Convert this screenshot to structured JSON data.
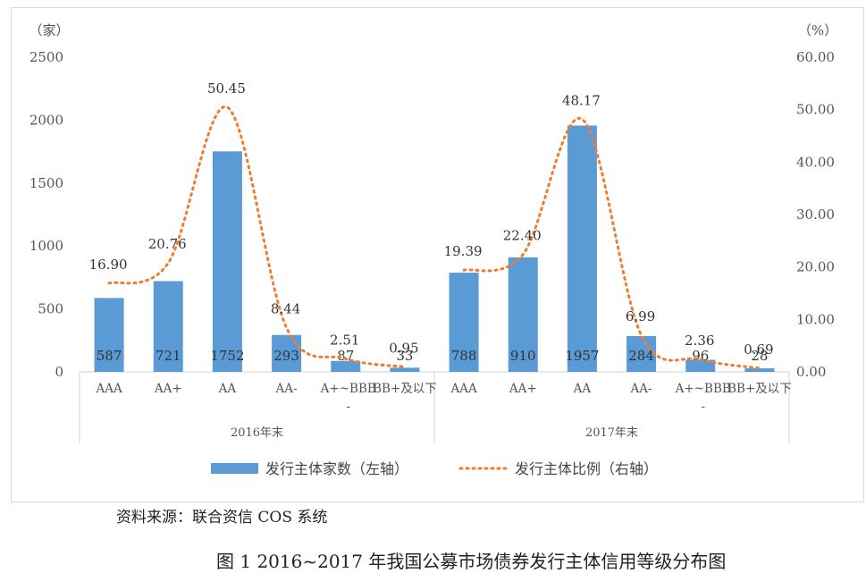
{
  "chart_data": {
    "type": "bar",
    "left_unit": "（家）",
    "right_unit": "（%）",
    "y_left": {
      "ticks": [
        0,
        500,
        1000,
        1500,
        2000,
        2500
      ],
      "ylim": [
        0,
        2500
      ]
    },
    "y_right": {
      "ticks": [
        "0.00",
        "10.00",
        "20.00",
        "30.00",
        "40.00",
        "50.00",
        "60.00"
      ],
      "ylim": [
        0,
        60
      ]
    },
    "groups": [
      {
        "name": "2016年末",
        "categories": [
          "AAA",
          "AA+",
          "AA",
          "AA-",
          "A+~BBB-",
          "BB+及以下"
        ],
        "counts": [
          587,
          721,
          1752,
          293,
          87,
          33
        ],
        "ratios": [
          16.9,
          20.76,
          50.45,
          8.44,
          2.51,
          0.95
        ],
        "ratio_labels": [
          "16.90",
          "20.76",
          "50.45",
          "8.44",
          "2.51",
          "0.95"
        ]
      },
      {
        "name": "2017年末",
        "categories": [
          "AAA",
          "AA+",
          "AA",
          "AA-",
          "A+~BBB-",
          "BB+及以下"
        ],
        "counts": [
          788,
          910,
          1957,
          284,
          96,
          28
        ],
        "ratios": [
          19.39,
          22.4,
          48.17,
          6.99,
          2.36,
          0.69
        ],
        "ratio_labels": [
          "19.39",
          "22.40",
          "48.17",
          "6.99",
          "2.36",
          "0.69"
        ]
      }
    ],
    "series": [
      {
        "name": "发行主体家数（左轴）",
        "kind": "bar",
        "color": "#5b9bd5"
      },
      {
        "name": "发行主体比例（右轴）",
        "kind": "line",
        "style": "dotted",
        "color": "#ed7d31"
      }
    ],
    "legend_position": "bottom"
  },
  "source_note": "资料来源：联合资信 COS 系统",
  "caption": "图 1  2016~2017 年我国公募市场债券发行主体信用等级分布图"
}
